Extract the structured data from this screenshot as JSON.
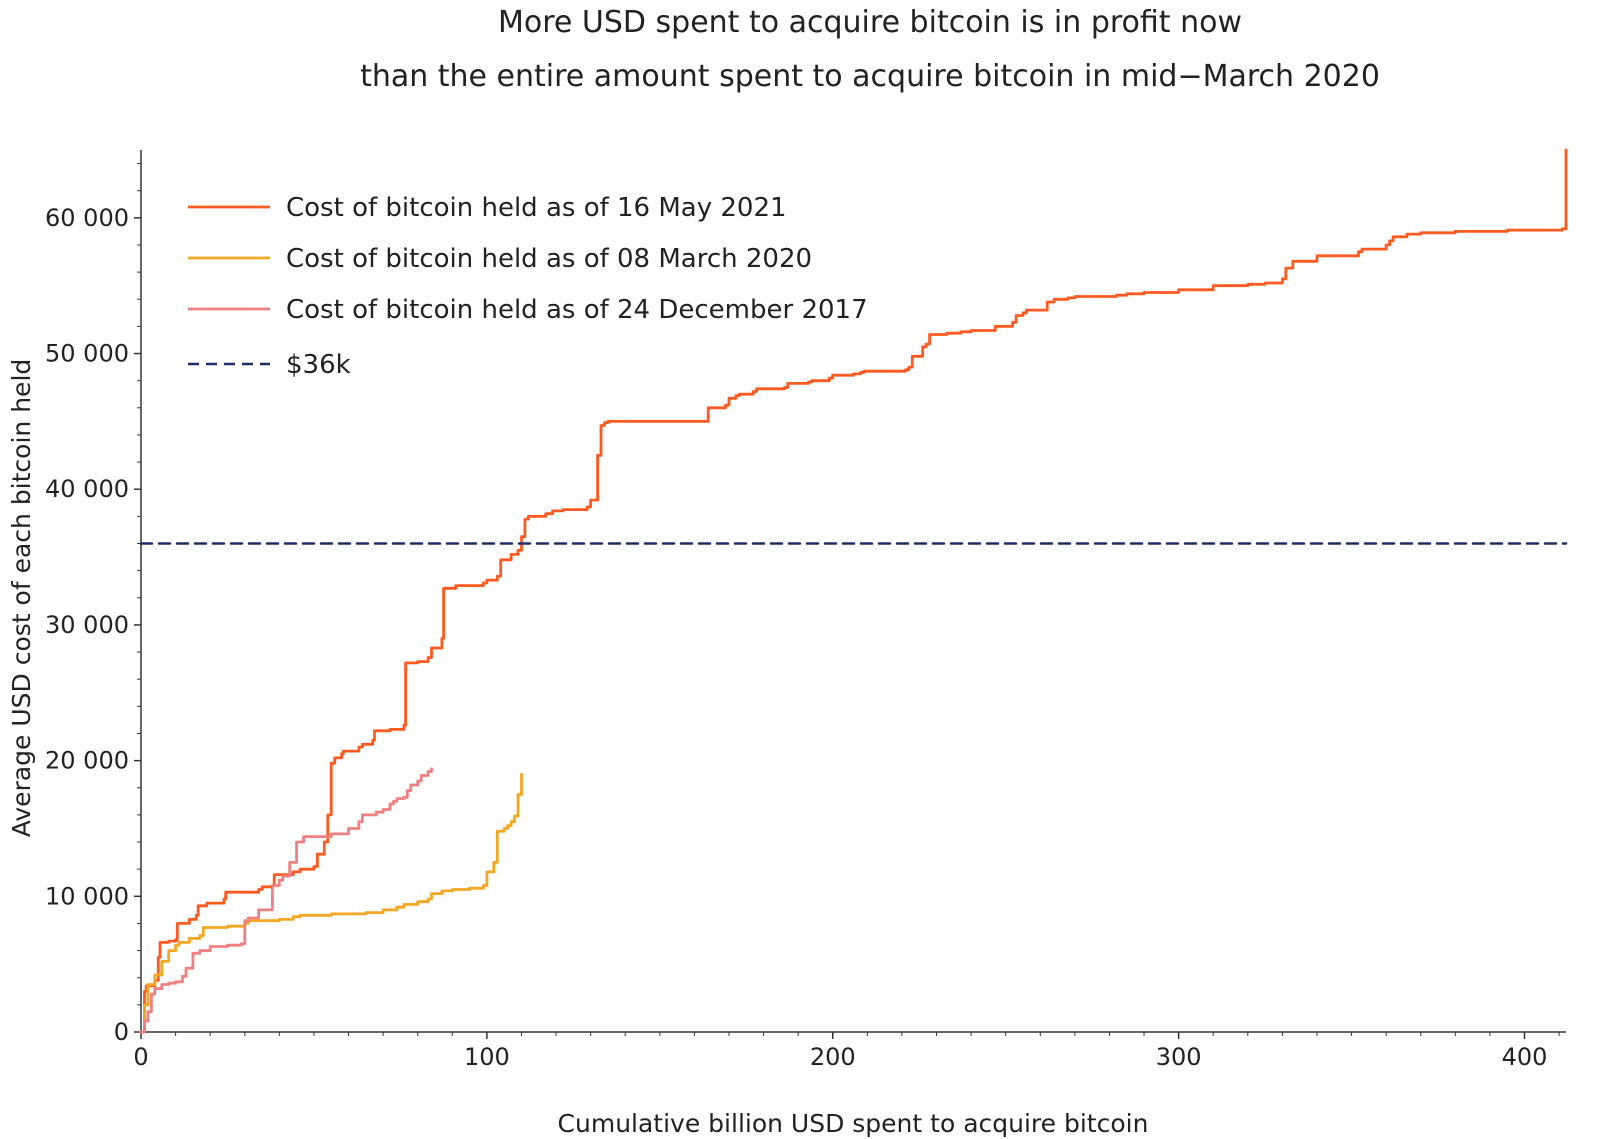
{
  "chart_data": {
    "type": "line",
    "title": [
      "More USD spent to acquire bitcoin is in profit now",
      "than the entire amount spent to acquire bitcoin in mid−March 2020"
    ],
    "xlabel": "Cumulative billion USD spent to acquire bitcoin",
    "ylabel": "Average USD cost of each bitcoin held",
    "xlim": [
      0,
      412
    ],
    "ylim": [
      0,
      65000
    ],
    "x_ticks": [
      0,
      100,
      200,
      300,
      400
    ],
    "x_tick_labels": [
      "0",
      "100",
      "200",
      "300",
      "400"
    ],
    "y_ticks": [
      0,
      10000,
      20000,
      30000,
      40000,
      50000,
      60000
    ],
    "y_tick_labels": [
      "0",
      "10 000",
      "20 000",
      "30 000",
      "40 000",
      "50 000",
      "60 000"
    ],
    "grid": false,
    "legend_position": "top-left",
    "series": [
      {
        "name": "Cost of bitcoin held as of 16 May 2021",
        "color": "#ff5a1f",
        "dash": false,
        "x": [
          0,
          1,
          1.5,
          4,
          5,
          5.5,
          8,
          10,
          10.5,
          14,
          16,
          16.5,
          19,
          24,
          24.5,
          34,
          35,
          38,
          38.5,
          44,
          46,
          50,
          51,
          53,
          54,
          55,
          56,
          58,
          58.5,
          63,
          64,
          67,
          67.5,
          72,
          76,
          76.5,
          80,
          83,
          84,
          87,
          87.5,
          91,
          99,
          100,
          103,
          104,
          107,
          109,
          110,
          111,
          112,
          117,
          119,
          122,
          129,
          130,
          132,
          133,
          134,
          135,
          150,
          163,
          164,
          169,
          170,
          172,
          173,
          177,
          178,
          186,
          187,
          193,
          194,
          199,
          200,
          206,
          208,
          209,
          221,
          222,
          223,
          226,
          227,
          228,
          233,
          237,
          240,
          247,
          252,
          253,
          255,
          256,
          262,
          264,
          268,
          270,
          282,
          285,
          290,
          300,
          310,
          320,
          325,
          330,
          331,
          333,
          340,
          352,
          353,
          360,
          361,
          362,
          366,
          370,
          380,
          390,
          395,
          410,
          411,
          412
        ],
        "y": [
          0,
          3000,
          3400,
          3800,
          5500,
          6600,
          6700,
          6800,
          8000,
          8300,
          8600,
          9300,
          9500,
          9800,
          10300,
          10500,
          10700,
          10800,
          11600,
          11800,
          12000,
          12200,
          13100,
          14000,
          16000,
          19800,
          20200,
          20500,
          20700,
          21000,
          21200,
          21500,
          22200,
          22300,
          22600,
          27200,
          27300,
          27600,
          28300,
          29000,
          32700,
          32900,
          33100,
          33300,
          33600,
          34800,
          35200,
          35500,
          36500,
          37800,
          38000,
          38200,
          38400,
          38500,
          38700,
          39200,
          42500,
          44700,
          44900,
          45000,
          45000,
          45000,
          46000,
          46200,
          46700,
          46900,
          47000,
          47200,
          47400,
          47500,
          47800,
          47900,
          48000,
          48200,
          48400,
          48500,
          48600,
          48700,
          48800,
          49000,
          49800,
          50500,
          50700,
          51400,
          51500,
          51600,
          51700,
          52000,
          52300,
          52800,
          53000,
          53200,
          53800,
          54000,
          54100,
          54200,
          54300,
          54400,
          54500,
          54700,
          55000,
          55100,
          55200,
          55500,
          56300,
          56800,
          57200,
          57500,
          57700,
          58000,
          58300,
          58600,
          58800,
          58900,
          59000,
          59000,
          59100,
          59100,
          59200,
          65000
        ]
      },
      {
        "name": "Cost of bitcoin held as of 08 March 2020",
        "color": "#f5a623",
        "dash": false,
        "x": [
          0,
          1,
          2,
          4,
          6,
          8,
          10,
          11,
          14,
          17,
          18,
          25,
          30,
          31,
          40,
          44,
          46,
          55,
          65,
          70,
          74,
          76,
          80,
          83,
          84,
          87,
          90,
          95,
          99,
          100,
          102,
          103,
          105,
          106,
          107,
          108,
          109,
          110
        ],
        "y": [
          0,
          2000,
          3500,
          4200,
          5200,
          6000,
          6400,
          6600,
          6900,
          7100,
          7700,
          7800,
          8000,
          8200,
          8300,
          8500,
          8600,
          8700,
          8800,
          9000,
          9200,
          9400,
          9600,
          9800,
          10200,
          10400,
          10500,
          10600,
          10800,
          11800,
          12500,
          14800,
          15000,
          15200,
          15500,
          15900,
          17500,
          19000
        ]
      },
      {
        "name": "Cost of bitcoin held as of 24 December 2017",
        "color": "#f08080",
        "dash": false,
        "x": [
          0,
          1,
          2,
          3,
          4,
          6,
          8,
          10,
          12,
          13,
          15,
          17,
          20,
          25,
          29,
          30,
          31,
          34,
          38,
          40,
          41,
          43,
          45,
          47,
          55,
          60,
          63,
          64,
          68,
          70,
          72,
          73,
          74,
          76,
          77,
          78,
          80,
          81,
          83,
          84
        ],
        "y": [
          0,
          800,
          1500,
          2800,
          3200,
          3500,
          3600,
          3700,
          4100,
          4700,
          5800,
          6000,
          6300,
          6400,
          6500,
          8200,
          8400,
          9000,
          10800,
          11200,
          11500,
          12500,
          14000,
          14400,
          14600,
          15000,
          15500,
          16000,
          16200,
          16400,
          16800,
          17000,
          17200,
          17300,
          17800,
          18200,
          18500,
          18900,
          19200,
          19400
        ]
      },
      {
        "name": "$36k",
        "color": "#1f2f66",
        "dash": true,
        "x": [
          0,
          412
        ],
        "y": [
          36000,
          36000
        ]
      }
    ]
  }
}
